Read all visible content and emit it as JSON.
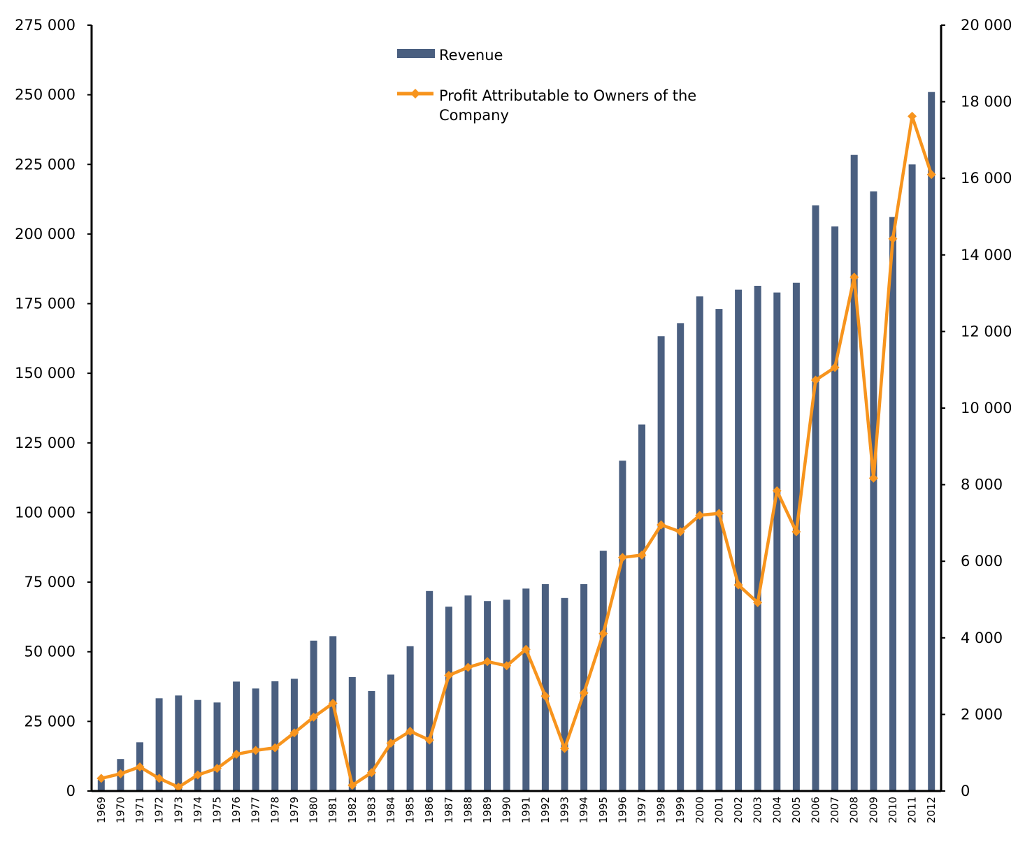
{
  "chart_data": {
    "type": "bar+line",
    "title": "",
    "categories": [
      "1969",
      "1970",
      "1971",
      "1972",
      "1973",
      "1974",
      "1975",
      "1976",
      "1977",
      "1978",
      "1979",
      "1980",
      "1981",
      "1982",
      "1983",
      "1984",
      "1985",
      "1986",
      "1987",
      "1988",
      "1989",
      "1990",
      "1991",
      "1992",
      "1993",
      "1994",
      "1995",
      "1996",
      "1997",
      "1998",
      "1999",
      "2000",
      "2001",
      "2002",
      "2003",
      "2004",
      "2005",
      "2006",
      "2007",
      "2008",
      "2009",
      "2010",
      "2011",
      "2012"
    ],
    "series": [
      {
        "name": "Revenue",
        "type": "bar",
        "axis": "left",
        "color": "#4a5f80",
        "values": [
          4000,
          11500,
          17500,
          33300,
          34300,
          32700,
          31800,
          39300,
          36800,
          39400,
          40300,
          54000,
          55600,
          40900,
          35900,
          41800,
          52000,
          71800,
          66200,
          70200,
          68200,
          68700,
          72700,
          74300,
          69300,
          74300,
          86300,
          118600,
          131600,
          163300,
          168000,
          177600,
          173100,
          180000,
          181400,
          179000,
          182500,
          210300,
          202700,
          228400,
          215300,
          206100,
          225000,
          251000
        ]
      },
      {
        "name": "Profit Attributable to Owners of the Company",
        "type": "line",
        "axis": "right",
        "color": "#f7941d",
        "values": [
          330,
          450,
          630,
          330,
          100,
          420,
          590,
          960,
          1060,
          1130,
          1520,
          1930,
          2290,
          150,
          480,
          1250,
          1560,
          1330,
          3020,
          3230,
          3380,
          3270,
          3700,
          2480,
          1110,
          2560,
          4110,
          6100,
          6160,
          6950,
          6770,
          7200,
          7250,
          5380,
          4920,
          7840,
          6770,
          10730,
          11060,
          13420,
          8170,
          14420,
          17620,
          16100
        ]
      }
    ],
    "axes": {
      "left": {
        "min": 0,
        "max": 275000,
        "ticks": [
          "0",
          "25 000",
          "50 000",
          "75 000",
          "100 000",
          "125 000",
          "150 000",
          "175 000",
          "200 000",
          "225 000",
          "250 000",
          "275 000"
        ]
      },
      "right": {
        "min": 0,
        "max": 20000,
        "ticks": [
          "0",
          "2 000",
          "4 000",
          "6 000",
          "8 000",
          "10 000",
          "12 000",
          "14 000",
          "16 000",
          "18 000",
          "20 000"
        ]
      }
    },
    "legend": {
      "placement": "top-center",
      "items": [
        "Revenue",
        "Profit Attributable to Owners of the",
        "Company"
      ]
    },
    "grid": false,
    "xlabel": "",
    "ylabel": ""
  }
}
